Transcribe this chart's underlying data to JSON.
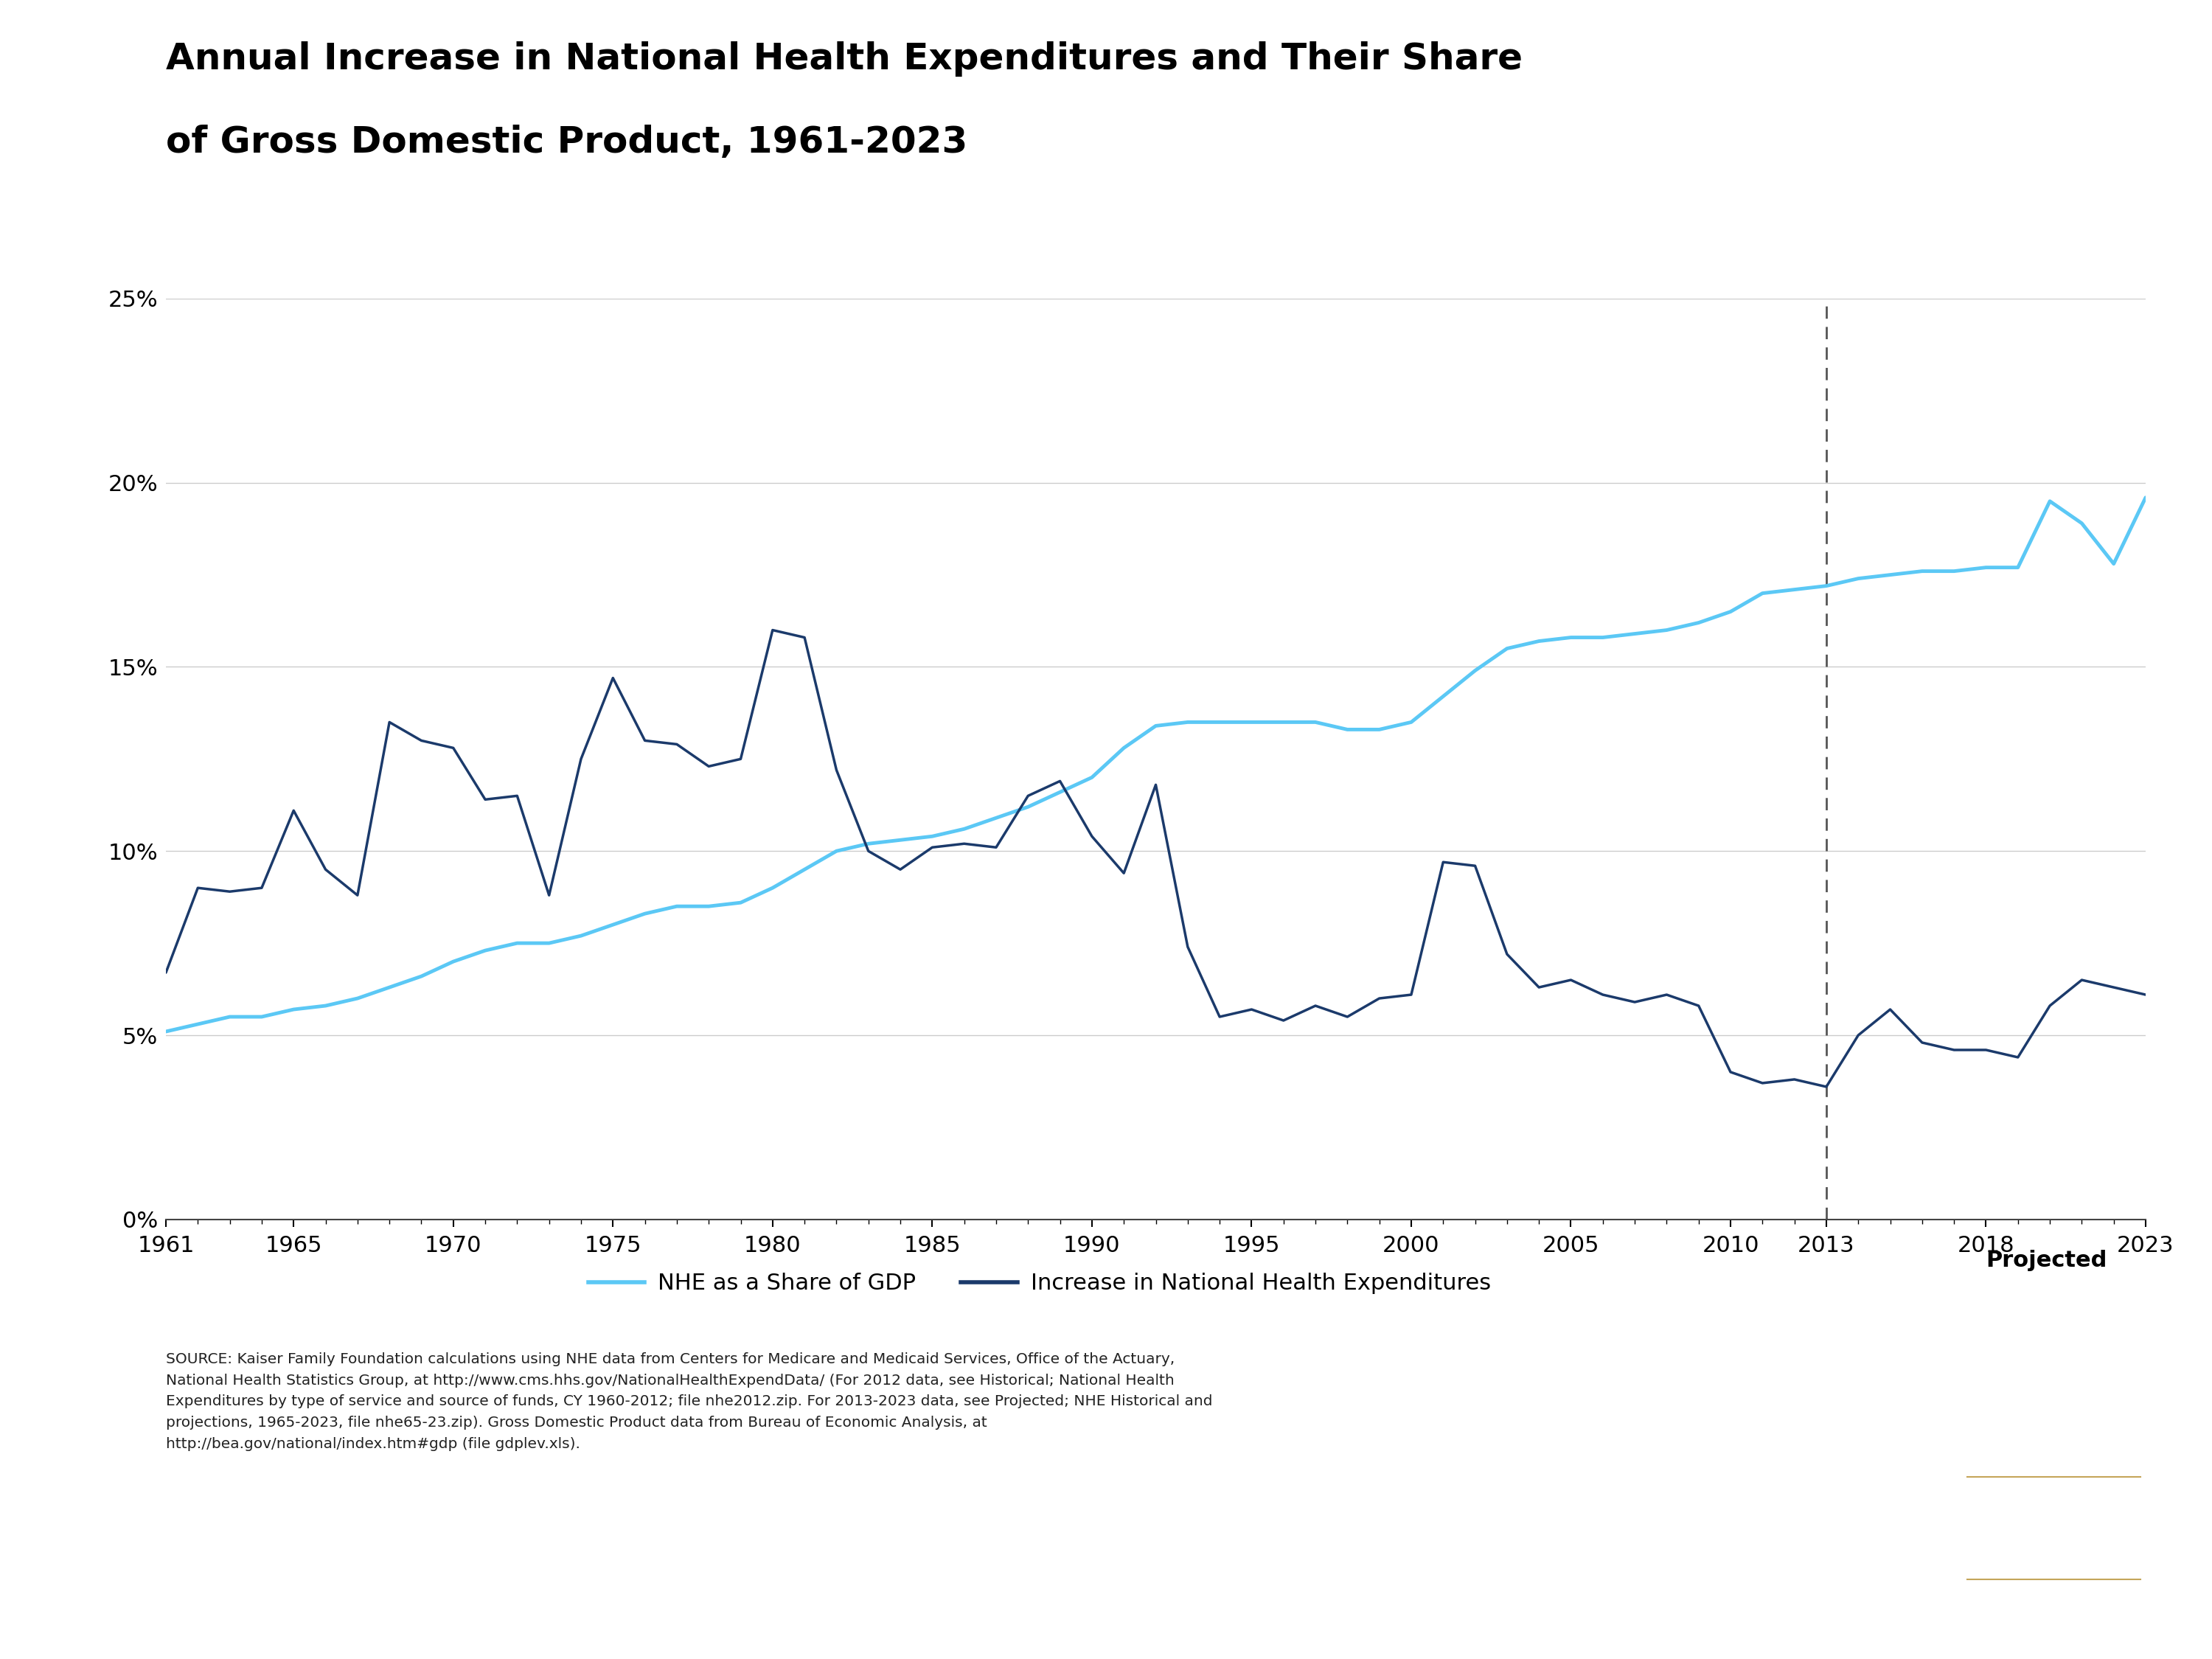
{
  "title_line1": "Annual Increase in National Health Expenditures and Their Share",
  "title_line2": "of Gross Domestic Product, 1961-2023",
  "title_fontsize": 36,
  "background_color": "#ffffff",
  "nhe_gdp_color": "#5BC8F5",
  "nhe_increase_color": "#1B3A6B",
  "dashed_line_year": 2013,
  "projected_label": "Projected",
  "legend_nhe_gdp": "NHE as a Share of GDP",
  "legend_nhe_increase": "Increase in National Health Expenditures",
  "source_text_line1": "SOURCE: Kaiser Family Foundation calculations using NHE data from Centers for Medicare and Medicaid Services, Office of the Actuary,",
  "source_text_line2": "National Health Statistics Group, at http://www.cms.hhs.gov/NationalHealthExpendData/ (For 2012 data, see Historical; National Health",
  "source_text_line3": "Expenditures by type of service and source of funds, CY 1960-2012; file nhe2012.zip. For 2013-2023 data, see Projected; NHE Historical and",
  "source_text_line4": "projections, 1965-2023, file nhe65-23.zip). Gross Domestic Product data from Bureau of Economic Analysis, at",
  "source_text_line5": "http://bea.gov/national/index.htm#gdp (file gdplev.xls).",
  "years": [
    1961,
    1962,
    1963,
    1964,
    1965,
    1966,
    1967,
    1968,
    1969,
    1970,
    1971,
    1972,
    1973,
    1974,
    1975,
    1976,
    1977,
    1978,
    1979,
    1980,
    1981,
    1982,
    1983,
    1984,
    1985,
    1986,
    1987,
    1988,
    1989,
    1990,
    1991,
    1992,
    1993,
    1994,
    1995,
    1996,
    1997,
    1998,
    1999,
    2000,
    2001,
    2002,
    2003,
    2004,
    2005,
    2006,
    2007,
    2008,
    2009,
    2010,
    2011,
    2012,
    2013,
    2014,
    2015,
    2016,
    2017,
    2018,
    2019,
    2020,
    2021,
    2022,
    2023
  ],
  "nhe_gdp": [
    5.1,
    5.3,
    5.5,
    5.5,
    5.7,
    5.8,
    6.0,
    6.3,
    6.6,
    7.0,
    7.3,
    7.5,
    7.5,
    7.7,
    8.0,
    8.3,
    8.5,
    8.5,
    8.6,
    9.0,
    9.5,
    10.0,
    10.2,
    10.3,
    10.4,
    10.6,
    10.9,
    11.2,
    11.6,
    12.0,
    12.8,
    13.4,
    13.5,
    13.5,
    13.5,
    13.5,
    13.5,
    13.3,
    13.3,
    13.5,
    14.2,
    14.9,
    15.5,
    15.7,
    15.8,
    15.8,
    15.9,
    16.0,
    16.2,
    16.5,
    17.0,
    17.1,
    17.2,
    17.4,
    17.5,
    17.6,
    17.6,
    17.7,
    17.7,
    19.5,
    18.9,
    17.8,
    19.6
  ],
  "nhe_increase": [
    6.7,
    9.0,
    8.9,
    9.0,
    11.1,
    9.5,
    8.8,
    13.5,
    13.0,
    12.8,
    11.4,
    11.5,
    8.8,
    12.5,
    14.7,
    13.0,
    12.9,
    12.3,
    12.5,
    16.0,
    15.8,
    12.2,
    10.0,
    9.5,
    10.1,
    10.2,
    10.1,
    11.5,
    11.9,
    10.4,
    9.4,
    11.8,
    7.4,
    5.5,
    5.7,
    5.4,
    5.8,
    5.5,
    6.0,
    6.1,
    9.7,
    9.6,
    7.2,
    6.3,
    6.5,
    6.1,
    5.9,
    6.1,
    5.8,
    4.0,
    3.7,
    3.8,
    3.6,
    5.0,
    5.7,
    4.8,
    4.6,
    4.6,
    4.4,
    5.8,
    6.5,
    6.3,
    6.1
  ],
  "ylim_max": 25,
  "yticks": [
    0,
    5,
    10,
    15,
    20,
    25
  ],
  "ytick_labels": [
    "0%",
    "5%",
    "10%",
    "15%",
    "20%",
    "25%"
  ],
  "logo_bg_color": "#1B3A6B",
  "logo_line_color": "#C5A55A",
  "logo_text_color": "#ffffff"
}
